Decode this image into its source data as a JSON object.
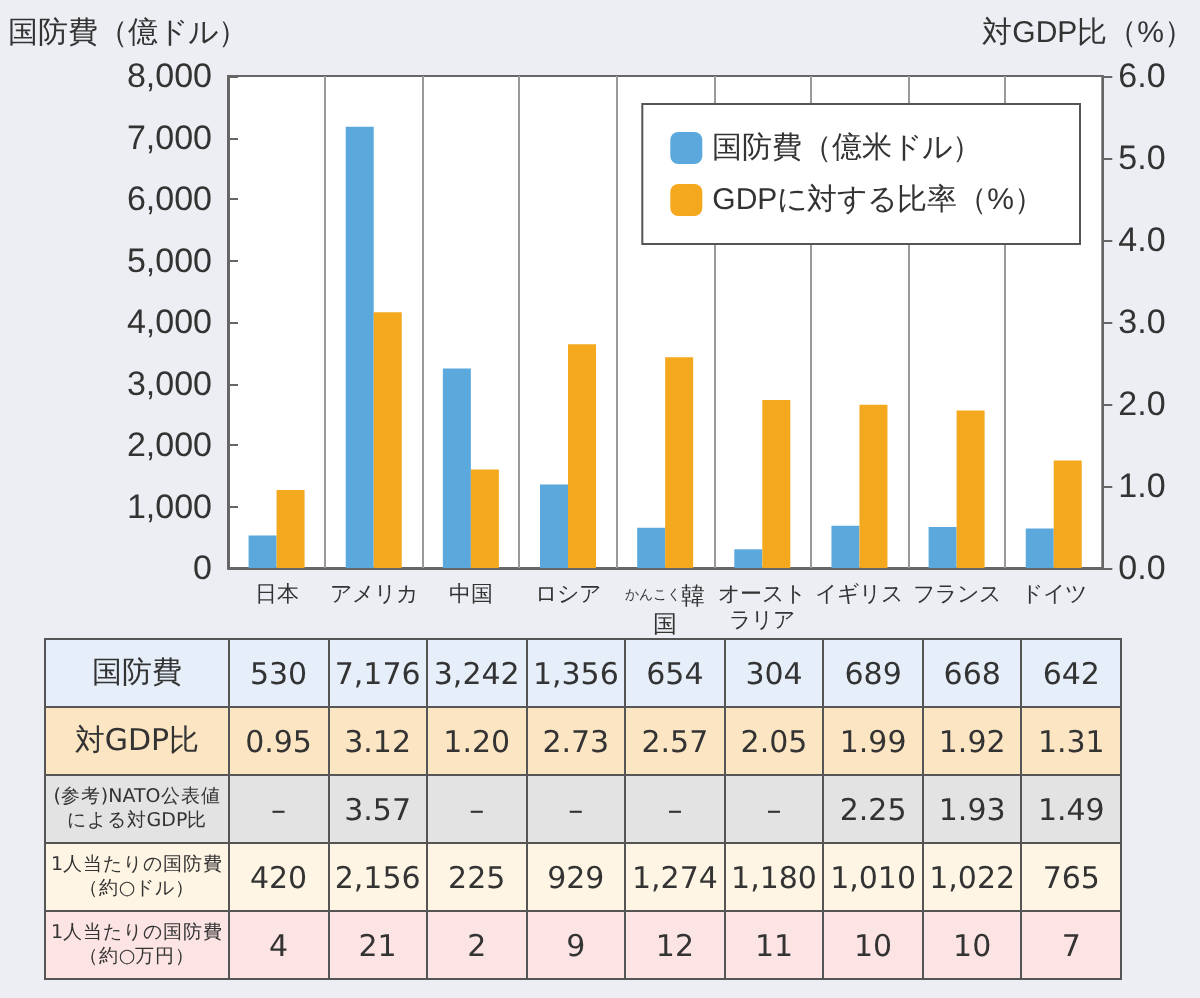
{
  "chart_data": {
    "type": "bar",
    "ylabel": "国防費（億ドル）",
    "y2label": "対GDP比（%）",
    "categories": [
      "日本",
      "アメリカ",
      "中国",
      "ロシア",
      "韓国",
      "オーストラリア",
      "イギリス",
      "フランス",
      "ドイツ"
    ],
    "series": [
      {
        "name": "国防費（億米ドル）",
        "color": "#5ba8dc",
        "values": [
          530,
          7176,
          3242,
          1356,
          654,
          304,
          689,
          668,
          642
        ],
        "value_labels": [
          "530",
          "7,176",
          "3,242",
          "1,356",
          "654",
          "304",
          "689",
          "668",
          "642"
        ]
      },
      {
        "name": "GDPに対する比率（%）",
        "color": "#f4a81e",
        "axis": "y2",
        "values": [
          0.95,
          3.12,
          1.2,
          2.73,
          2.57,
          2.05,
          1.99,
          1.92,
          1.31
        ],
        "value_labels": [
          "0.95",
          "3.12",
          "1.20",
          "2.73",
          "2.57",
          "2.05",
          "1.99",
          "1.92",
          "1.31"
        ]
      }
    ],
    "ylim": [
      0,
      8000
    ],
    "yticks": [
      0,
      {
        "value": 1000,
        "label": "1,000"
      },
      {
        "value": 2000,
        "label": "2,000"
      },
      {
        "value": 3000,
        "label": "3,000"
      },
      {
        "value": 4000,
        "label": "4,000"
      },
      {
        "value": 5000,
        "label": "5,000"
      },
      {
        "value": 6000,
        "label": "6,000"
      },
      {
        "value": 7000,
        "label": "7,000"
      },
      {
        "value": 8000,
        "label": "8,000"
      }
    ],
    "y2lim": [
      0,
      6
    ],
    "y2ticks": [
      {
        "value": 0,
        "label": "0.0"
      },
      {
        "value": 1,
        "label": "1.0"
      },
      {
        "value": 2,
        "label": "2.0"
      },
      {
        "value": 3,
        "label": "3.0"
      },
      {
        "value": 4,
        "label": "4.0"
      },
      {
        "value": 5,
        "label": "5.0"
      },
      {
        "value": 6,
        "label": "6.0"
      }
    ],
    "grid": "x",
    "legend": "top right",
    "annotations": [
      "かんこく",
      "国防費",
      "対GDP比",
      "(参考)NATO公表値による対GDP比",
      "–",
      "3.57",
      "–",
      "–",
      "–",
      "–",
      "2.25",
      "1.93",
      "1.49",
      "1人当たりの国防費（約○ドル）",
      "420",
      "2,156",
      "225",
      "929",
      "1,274",
      "1,180",
      "1,010",
      "1,022",
      "765",
      "1人当たりの国防費（約○万円）",
      "4",
      "21",
      "2",
      "9",
      "12",
      "11",
      "10",
      "10",
      "7"
    ]
  }
}
